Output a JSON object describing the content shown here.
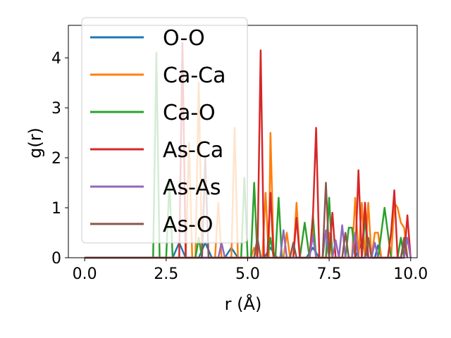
{
  "chart_data": {
    "type": "line",
    "xlabel": "r (Å)",
    "ylabel": "g(r)",
    "xlim": [
      -0.5,
      10.2
    ],
    "ylim": [
      0,
      4.65
    ],
    "xticks": [
      0.0,
      2.5,
      5.0,
      7.5,
      10.0
    ],
    "xtick_labels": [
      "0.0",
      "2.5",
      "5.0",
      "7.5",
      "10.0"
    ],
    "yticks": [
      0,
      1,
      2,
      3,
      4
    ],
    "ytick_labels": [
      "0",
      "1",
      "2",
      "3",
      "4"
    ],
    "grid": false,
    "legend_position": "upper-left",
    "series": [
      {
        "name": "O-O",
        "color": "#1f77b4",
        "points": [
          [
            0,
            0
          ],
          [
            2.7,
            0
          ],
          [
            2.9,
            0.3
          ],
          [
            3.1,
            0
          ],
          [
            3.5,
            0
          ],
          [
            3.7,
            0.3
          ],
          [
            3.9,
            0
          ],
          [
            4.3,
            0
          ],
          [
            4.5,
            0.2
          ],
          [
            4.7,
            0
          ],
          [
            5.5,
            0
          ],
          [
            5.7,
            0.2
          ],
          [
            5.9,
            0
          ],
          [
            6.8,
            0
          ],
          [
            7.0,
            0.2
          ],
          [
            7.2,
            0
          ],
          [
            8.3,
            0
          ],
          [
            8.5,
            0.3
          ],
          [
            8.7,
            0
          ],
          [
            8.9,
            0
          ],
          [
            9.0,
            0.25
          ],
          [
            9.1,
            0
          ],
          [
            9.7,
            0
          ],
          [
            9.8,
            0.3
          ],
          [
            9.9,
            0
          ]
        ]
      },
      {
        "name": "Ca-Ca",
        "color": "#ff7f0e",
        "points": [
          [
            0,
            0
          ],
          [
            3.1,
            0
          ],
          [
            3.2,
            2.3
          ],
          [
            3.3,
            0
          ],
          [
            3.4,
            0
          ],
          [
            3.5,
            3.5
          ],
          [
            3.6,
            0
          ],
          [
            4.0,
            0
          ],
          [
            4.1,
            1.1
          ],
          [
            4.2,
            0
          ],
          [
            4.5,
            0
          ],
          [
            4.6,
            2.6
          ],
          [
            4.7,
            0
          ],
          [
            5.1,
            0
          ],
          [
            5.2,
            0.2
          ],
          [
            5.3,
            0
          ],
          [
            5.45,
            0
          ],
          [
            5.55,
            1.3
          ],
          [
            5.65,
            0
          ],
          [
            5.7,
            2.5
          ],
          [
            5.8,
            0
          ],
          [
            6.1,
            0
          ],
          [
            6.2,
            0.5
          ],
          [
            6.3,
            0
          ],
          [
            6.4,
            0
          ],
          [
            6.5,
            1.1
          ],
          [
            6.6,
            0
          ],
          [
            6.9,
            0
          ],
          [
            7.0,
            0.6
          ],
          [
            7.1,
            0
          ],
          [
            7.4,
            0
          ],
          [
            7.5,
            0.5
          ],
          [
            7.6,
            0
          ],
          [
            8.2,
            0
          ],
          [
            8.3,
            1.2
          ],
          [
            8.4,
            0
          ],
          [
            8.5,
            1.1
          ],
          [
            8.6,
            0
          ],
          [
            8.7,
            1.1
          ],
          [
            8.8,
            0
          ],
          [
            8.9,
            0.5
          ],
          [
            9.0,
            0.5
          ],
          [
            9.1,
            0
          ],
          [
            9.4,
            0
          ],
          [
            9.5,
            1.1
          ],
          [
            9.6,
            1.0
          ],
          [
            9.7,
            0.7
          ],
          [
            9.8,
            0.6
          ],
          [
            9.9,
            0
          ]
        ]
      },
      {
        "name": "Ca-O",
        "color": "#2ca02c",
        "points": [
          [
            0,
            0
          ],
          [
            2.1,
            0
          ],
          [
            2.2,
            4.1
          ],
          [
            2.3,
            0
          ],
          [
            2.5,
            0
          ],
          [
            2.6,
            1.5
          ],
          [
            2.7,
            0
          ],
          [
            3.4,
            0
          ],
          [
            3.5,
            0.4
          ],
          [
            3.6,
            0
          ],
          [
            4.8,
            0
          ],
          [
            4.9,
            1.6
          ],
          [
            5.0,
            0
          ],
          [
            5.1,
            0
          ],
          [
            5.2,
            1.5
          ],
          [
            5.3,
            0
          ],
          [
            5.6,
            0
          ],
          [
            5.7,
            0.4
          ],
          [
            5.8,
            0
          ],
          [
            5.85,
            0
          ],
          [
            5.95,
            1.2
          ],
          [
            6.05,
            0
          ],
          [
            6.6,
            0
          ],
          [
            6.75,
            0.7
          ],
          [
            6.9,
            0
          ],
          [
            7.0,
            0.85
          ],
          [
            7.1,
            0
          ],
          [
            7.4,
            0
          ],
          [
            7.5,
            1.2
          ],
          [
            7.6,
            0
          ],
          [
            8.0,
            0
          ],
          [
            8.1,
            0.6
          ],
          [
            8.2,
            0.6
          ],
          [
            8.3,
            0
          ],
          [
            8.5,
            0
          ],
          [
            8.6,
            0.8
          ],
          [
            8.7,
            0
          ],
          [
            9.0,
            0
          ],
          [
            9.2,
            1.0
          ],
          [
            9.4,
            0
          ],
          [
            9.6,
            0
          ],
          [
            9.7,
            0.4
          ],
          [
            9.8,
            0
          ]
        ]
      },
      {
        "name": "As-Ca",
        "color": "#d62728",
        "points": [
          [
            0,
            0
          ],
          [
            2.9,
            0
          ],
          [
            3.0,
            4.3
          ],
          [
            3.1,
            0
          ],
          [
            5.3,
            0
          ],
          [
            5.4,
            4.15
          ],
          [
            5.5,
            0
          ],
          [
            5.6,
            0
          ],
          [
            5.7,
            1.3
          ],
          [
            5.8,
            0
          ],
          [
            6.4,
            0
          ],
          [
            6.5,
            0.8
          ],
          [
            6.6,
            0
          ],
          [
            6.9,
            0
          ],
          [
            7.0,
            0.8
          ],
          [
            7.1,
            2.6
          ],
          [
            7.2,
            0
          ],
          [
            7.5,
            0
          ],
          [
            7.6,
            0.9
          ],
          [
            7.7,
            0
          ],
          [
            8.3,
            0
          ],
          [
            8.4,
            1.75
          ],
          [
            8.5,
            0
          ],
          [
            8.6,
            1.1
          ],
          [
            8.7,
            0
          ],
          [
            9.3,
            0
          ],
          [
            9.4,
            0.5
          ],
          [
            9.5,
            1.35
          ],
          [
            9.6,
            0
          ],
          [
            9.8,
            0
          ],
          [
            9.9,
            0.85
          ],
          [
            10.0,
            0
          ]
        ]
      },
      {
        "name": "As-As",
        "color": "#9467bd",
        "points": [
          [
            0,
            0
          ],
          [
            4.1,
            0
          ],
          [
            4.2,
            0.3
          ],
          [
            4.3,
            0
          ],
          [
            6.0,
            0
          ],
          [
            6.1,
            0.55
          ],
          [
            6.2,
            0
          ],
          [
            6.9,
            0
          ],
          [
            7.0,
            0.45
          ],
          [
            7.1,
            0
          ],
          [
            7.3,
            0
          ],
          [
            7.4,
            0.55
          ],
          [
            7.5,
            0
          ],
          [
            7.6,
            0
          ],
          [
            7.7,
            0.35
          ],
          [
            7.8,
            0
          ],
          [
            7.9,
            0.65
          ],
          [
            8.0,
            0
          ],
          [
            8.2,
            0
          ],
          [
            8.3,
            0.5
          ],
          [
            8.4,
            0
          ],
          [
            8.8,
            0
          ],
          [
            8.9,
            0.3
          ],
          [
            9.0,
            0
          ],
          [
            9.8,
            0
          ],
          [
            9.9,
            0.4
          ],
          [
            10.0,
            0
          ]
        ]
      },
      {
        "name": "As-O",
        "color": "#8c564b",
        "points": [
          [
            0,
            0
          ],
          [
            3.6,
            0
          ],
          [
            3.7,
            2.0
          ],
          [
            3.8,
            0
          ],
          [
            5.2,
            0
          ],
          [
            5.3,
            0.4
          ],
          [
            5.4,
            0
          ],
          [
            6.3,
            0
          ],
          [
            6.4,
            0.3
          ],
          [
            6.5,
            0
          ],
          [
            7.3,
            0
          ],
          [
            7.4,
            1.5
          ],
          [
            7.5,
            0
          ],
          [
            7.9,
            0
          ],
          [
            8.0,
            0.5
          ],
          [
            8.1,
            0
          ],
          [
            8.6,
            0
          ],
          [
            8.7,
            0.4
          ],
          [
            8.8,
            0
          ],
          [
            9.7,
            0
          ],
          [
            9.8,
            0.4
          ],
          [
            9.9,
            0
          ]
        ]
      }
    ]
  }
}
